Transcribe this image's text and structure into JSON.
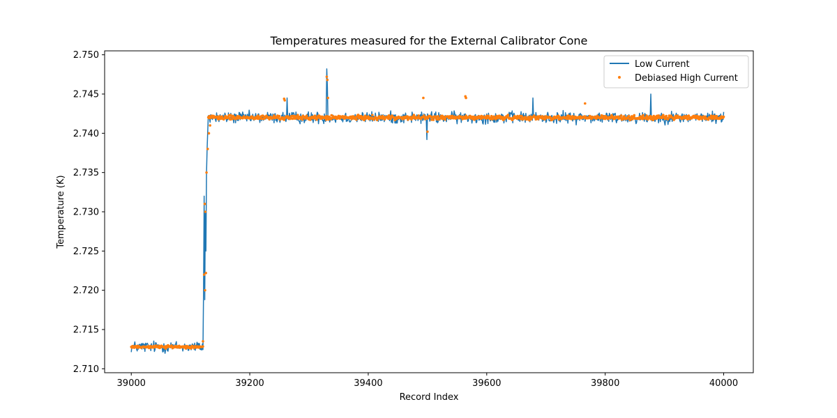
{
  "chart_data": {
    "type": "line",
    "title": "Temperatures measured for the External Calibrator Cone",
    "xlabel": "Record Index",
    "ylabel": "Temperature (K)",
    "xlim": [
      38955,
      40050
    ],
    "ylim": [
      2.7095,
      2.7505
    ],
    "xticks": [
      39000,
      39200,
      39400,
      39600,
      39800,
      40000
    ],
    "xtick_labels": [
      "39000",
      "39200",
      "39400",
      "39600",
      "39800",
      "40000"
    ],
    "yticks": [
      2.71,
      2.715,
      2.72,
      2.725,
      2.73,
      2.735,
      2.74,
      2.745,
      2.75
    ],
    "ytick_labels": [
      "2.710",
      "2.715",
      "2.720",
      "2.725",
      "2.730",
      "2.735",
      "2.740",
      "2.745",
      "2.750"
    ],
    "legend_position": "top-right",
    "series": [
      {
        "name": "Low Current",
        "kind": "line",
        "color": "#1f77b4",
        "segments": [
          {
            "x_start": 39000,
            "x_end": 39121,
            "base": 2.7128,
            "noise": 0.0011
          },
          {
            "x_start": 39122,
            "x_end": 39122,
            "base": 2.72,
            "noise": 0.0
          },
          {
            "x_start": 39123,
            "x_end": 39123,
            "base": 2.732,
            "noise": 0.0
          },
          {
            "x_start": 39124,
            "x_end": 39124,
            "base": 2.7188,
            "noise": 0.0
          },
          {
            "x_start": 39125,
            "x_end": 39125,
            "base": 2.73,
            "noise": 0.0
          },
          {
            "x_start": 39126,
            "x_end": 39126,
            "base": 2.725,
            "noise": 0.0
          },
          {
            "x_start": 39127,
            "x_end": 39127,
            "base": 2.735,
            "noise": 0.0
          },
          {
            "x_start": 39128,
            "x_end": 39128,
            "base": 2.738,
            "noise": 0.0
          },
          {
            "x_start": 39130,
            "x_end": 40000,
            "base": 2.742,
            "noise": 0.0011
          }
        ],
        "spikes": [
          {
            "x": 39330,
            "y": 2.7482
          },
          {
            "x": 39331,
            "y": 2.746
          },
          {
            "x": 39499,
            "y": 2.7392
          },
          {
            "x": 39877,
            "y": 2.745
          },
          {
            "x": 39678,
            "y": 2.7445
          },
          {
            "x": 39263,
            "y": 2.7445
          }
        ]
      },
      {
        "name": "Debiased High Current",
        "kind": "scatter",
        "color": "#ff7f0e",
        "segments": [
          {
            "x_start": 39000,
            "x_end": 39121,
            "base": 2.7128,
            "noise": 0.00025
          },
          {
            "x_start": 39130,
            "x_end": 40000,
            "base": 2.742,
            "noise": 0.0004
          }
        ],
        "transition_points": [
          {
            "x": 39121,
            "y": 2.7135
          },
          {
            "x": 39123,
            "y": 2.722
          },
          {
            "x": 39124,
            "y": 2.731
          },
          {
            "x": 39124.5,
            "y": 2.72
          },
          {
            "x": 39125,
            "y": 2.73
          },
          {
            "x": 39126,
            "y": 2.7222
          },
          {
            "x": 39127,
            "y": 2.735
          },
          {
            "x": 39129,
            "y": 2.738
          },
          {
            "x": 39131,
            "y": 2.74
          },
          {
            "x": 39133,
            "y": 2.741
          }
        ],
        "spikes": [
          {
            "x": 39258,
            "y": 2.7444
          },
          {
            "x": 39259,
            "y": 2.7442
          },
          {
            "x": 39330,
            "y": 2.7472
          },
          {
            "x": 39331,
            "y": 2.7468
          },
          {
            "x": 39332,
            "y": 2.7445
          },
          {
            "x": 39493,
            "y": 2.7445
          },
          {
            "x": 39564,
            "y": 2.7447
          },
          {
            "x": 39565,
            "y": 2.7445
          },
          {
            "x": 39766,
            "y": 2.7438
          },
          {
            "x": 39500,
            "y": 2.7402
          }
        ]
      }
    ]
  }
}
